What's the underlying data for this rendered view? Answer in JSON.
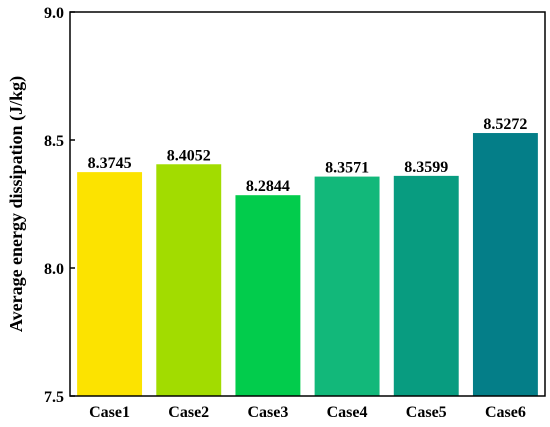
{
  "chart_data": {
    "type": "bar",
    "title": "",
    "xlabel": "",
    "ylabel": "Average energy dissipation (J/kg)",
    "categories": [
      "Case1",
      "Case2",
      "Case3",
      "Case4",
      "Case5",
      "Case6"
    ],
    "values": [
      8.3745,
      8.4052,
      8.2844,
      8.3571,
      8.3599,
      8.5272
    ],
    "value_labels": [
      "8.3745",
      "8.4052",
      "8.2844",
      "8.3571",
      "8.3599",
      "8.5272"
    ],
    "colors": [
      "#fce300",
      "#a2dc00",
      "#02cc4c",
      "#12b87a",
      "#089c80",
      "#047e88"
    ],
    "ylim": [
      7.5,
      9.0
    ],
    "yticks": [
      7.5,
      8.0,
      8.5,
      9.0
    ],
    "ytick_labels": [
      "7.5",
      "8.0",
      "8.5",
      "9.0"
    ],
    "grid": false,
    "legend": "none"
  }
}
